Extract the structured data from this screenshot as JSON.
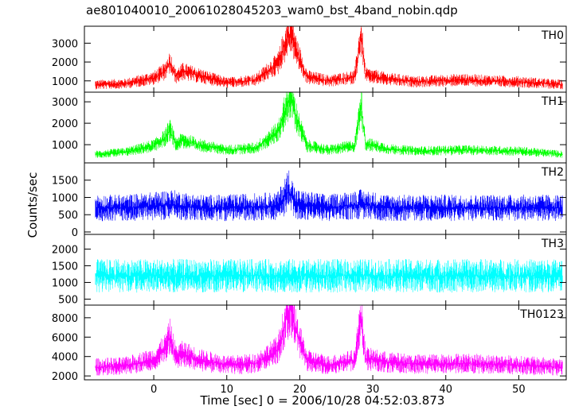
{
  "chart_data": {
    "type": "line",
    "title": "ae801040010_20061028045203_wam0_bst_4band_nobin.qdp",
    "xlabel": "Time [sec] 0 = 2006/10/28 04:52:03.873",
    "ylabel": "Counts/sec",
    "xlim": [
      -9.5,
      56.5
    ],
    "x_ticks": [
      0,
      10,
      20,
      30,
      40,
      50
    ],
    "grid": false,
    "panels": [
      {
        "name": "TH0",
        "color": "#ff0000",
        "ylim": [
          400,
          3900
        ],
        "y_ticks": [
          1000,
          2000,
          3000
        ],
        "series": [
          {
            "name": "TH0",
            "x": [
              -8,
              -4,
              0,
              1.5,
              2.2,
              3,
              4,
              6,
              10,
              14,
              17,
              18.3,
              18.8,
              19.5,
              21,
              24,
              27.5,
              28.4,
              29,
              32,
              36,
              42,
              50,
              56
            ],
            "y": [
              800,
              850,
              1150,
              1500,
              2000,
              1250,
              1500,
              1300,
              900,
              1050,
              1900,
              3300,
              3600,
              2600,
              1200,
              1000,
              1200,
              3400,
              1300,
              1100,
              950,
              1050,
              950,
              800
            ]
          }
        ]
      },
      {
        "name": "TH1",
        "color": "#00ff00",
        "ylim": [
          150,
          3450
        ],
        "y_ticks": [
          1000,
          2000,
          3000
        ],
        "series": [
          {
            "name": "TH1",
            "x": [
              -8,
              -4,
              0,
              1.5,
              2.2,
              3,
              4,
              6,
              10,
              14,
              17,
              18.3,
              18.8,
              19.5,
              21,
              24,
              27.5,
              28.4,
              29,
              32,
              36,
              42,
              50,
              56
            ],
            "y": [
              550,
              650,
              950,
              1300,
              1700,
              1050,
              1200,
              1000,
              750,
              850,
              1600,
              2900,
              3200,
              2300,
              950,
              750,
              950,
              2900,
              1050,
              800,
              700,
              750,
              700,
              550
            ]
          }
        ]
      },
      {
        "name": "TH2",
        "color": "#0000ff",
        "ylim": [
          -70,
          2000
        ],
        "y_ticks": [
          0,
          500,
          1000,
          1500
        ],
        "series": [
          {
            "name": "TH2",
            "x": [
              -8,
              -4,
              0,
              2.2,
              6,
              10,
              17,
              18.5,
              19.5,
              24,
              28.4,
              32,
              42,
              56
            ],
            "y": [
              700,
              700,
              750,
              800,
              700,
              700,
              750,
              1200,
              800,
              700,
              800,
              700,
              700,
              700
            ]
          }
        ]
      },
      {
        "name": "TH3",
        "color": "#00ffff",
        "ylim": [
          320,
          2440
        ],
        "y_ticks": [
          500,
          1000,
          1500,
          2000
        ],
        "series": [
          {
            "name": "TH3",
            "x": [
              -8,
              0,
              10,
              20,
              30,
              40,
              50,
              56
            ],
            "y": [
              1200,
              1200,
              1200,
              1200,
              1200,
              1200,
              1200,
              1200
            ]
          }
        ]
      },
      {
        "name": "TH0123",
        "color": "#ff00ff",
        "ylim": [
          1600,
          9300
        ],
        "y_ticks": [
          2000,
          4000,
          6000,
          8000
        ],
        "series": [
          {
            "name": "TH0123",
            "x": [
              -8,
              -4,
              0,
              1.5,
              2.2,
              3,
              4,
              6,
              10,
              14,
              17,
              18.3,
              18.8,
              19.5,
              21,
              24,
              27.5,
              28.4,
              29,
              32,
              36,
              42,
              50,
              56
            ],
            "y": [
              2900,
              3000,
              3700,
              4800,
              6000,
              4000,
              4300,
              3700,
              3100,
              3300,
              4700,
              8200,
              9000,
              6500,
              3600,
              3100,
              3600,
              8200,
              3800,
              3400,
              3200,
              3300,
              3100,
              2900
            ]
          }
        ]
      }
    ]
  }
}
